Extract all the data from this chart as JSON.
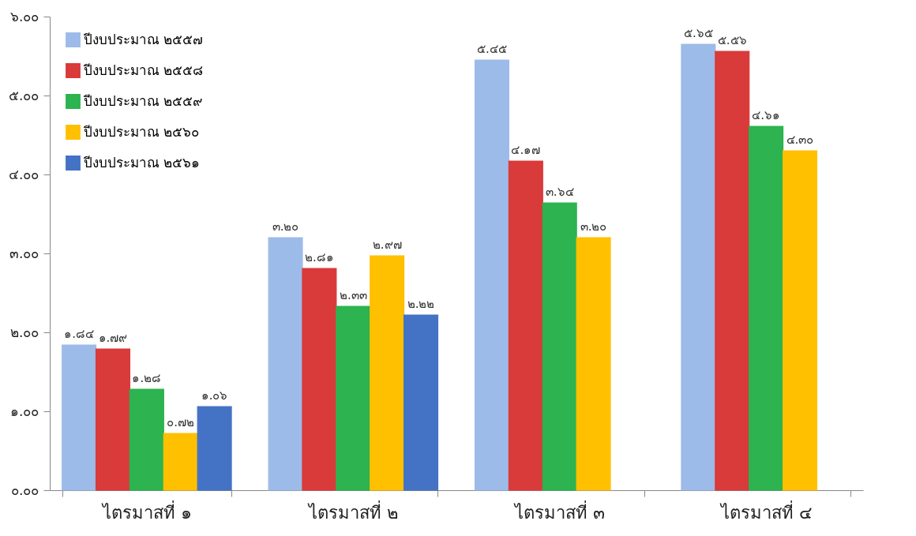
{
  "chart_data": {
    "type": "bar",
    "categories": [
      "ไตรมาสที่ ๑",
      "ไตรมาสที่ ๒",
      "ไตรมาสที่ ๓",
      "ไตรมาสที่ ๔"
    ],
    "series": [
      {
        "name": "ปีงบประมาณ ๒๕๕๗",
        "color": "#9dbbe8",
        "values": [
          1.84,
          3.2,
          5.45,
          5.65
        ],
        "value_labels": [
          "๑.๘๔",
          "๓.๒๐",
          "๕.๔๕",
          "๕.๖๕"
        ]
      },
      {
        "name": "ปีงบประมาณ ๒๕๕๘",
        "color": "#d93a3a",
        "values": [
          1.79,
          2.81,
          4.17,
          5.56
        ],
        "value_labels": [
          "๑.๗๙",
          "๒.๘๑",
          "๔.๑๗",
          "๕.๕๖"
        ]
      },
      {
        "name": "ปีงบประมาณ ๒๕๕๙",
        "color": "#2db34f",
        "values": [
          1.28,
          2.33,
          3.64,
          4.61
        ],
        "value_labels": [
          "๑.๒๘",
          "๒.๓๓",
          "๓.๖๔",
          "๔.๖๑"
        ]
      },
      {
        "name": "ปีงบประมาณ ๒๕๖๐",
        "color": "#ffc000",
        "values": [
          0.72,
          2.97,
          3.2,
          4.3
        ],
        "value_labels": [
          "๐.๗๒",
          "๒.๙๗",
          "๓.๒๐",
          "๔.๓๐"
        ]
      },
      {
        "name": "ปีงบประมาณ ๒๕๖๑",
        "color": "#4472c4",
        "values": [
          1.06,
          2.22,
          null,
          null
        ],
        "value_labels": [
          "๑.๐๖",
          "๒.๒๒",
          null,
          null
        ]
      }
    ],
    "ylim": [
      0,
      6
    ],
    "yticks": [
      {
        "value": 0,
        "label": "๐.๐๐"
      },
      {
        "value": 1,
        "label": "๑.๐๐"
      },
      {
        "value": 2,
        "label": "๒.๐๐"
      },
      {
        "value": 3,
        "label": "๓.๐๐"
      },
      {
        "value": 4,
        "label": "๔.๐๐"
      },
      {
        "value": 5,
        "label": "๕.๐๐"
      },
      {
        "value": 6,
        "label": "๖.๐๐"
      }
    ],
    "grid": false,
    "legend": "top left"
  }
}
